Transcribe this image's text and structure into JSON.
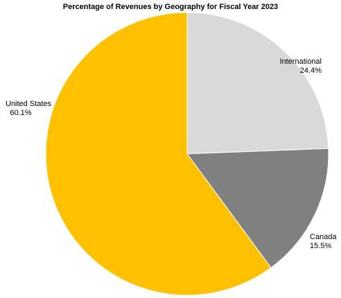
{
  "chart_data": {
    "type": "pie",
    "title": "Percentage of Revenues by Geography for Fiscal Year 2023",
    "start_angle_deg": 0,
    "direction": "clockwise",
    "slices": [
      {
        "label": "International",
        "value": 24.4,
        "value_label": "24.4%",
        "color": "#d9d9d9"
      },
      {
        "label": "Canada",
        "value": 15.5,
        "value_label": "15.5%",
        "color": "#808080"
      },
      {
        "label": "United States",
        "value": 60.1,
        "value_label": "60.1%",
        "color": "#ffc000"
      }
    ],
    "legend": "none"
  }
}
